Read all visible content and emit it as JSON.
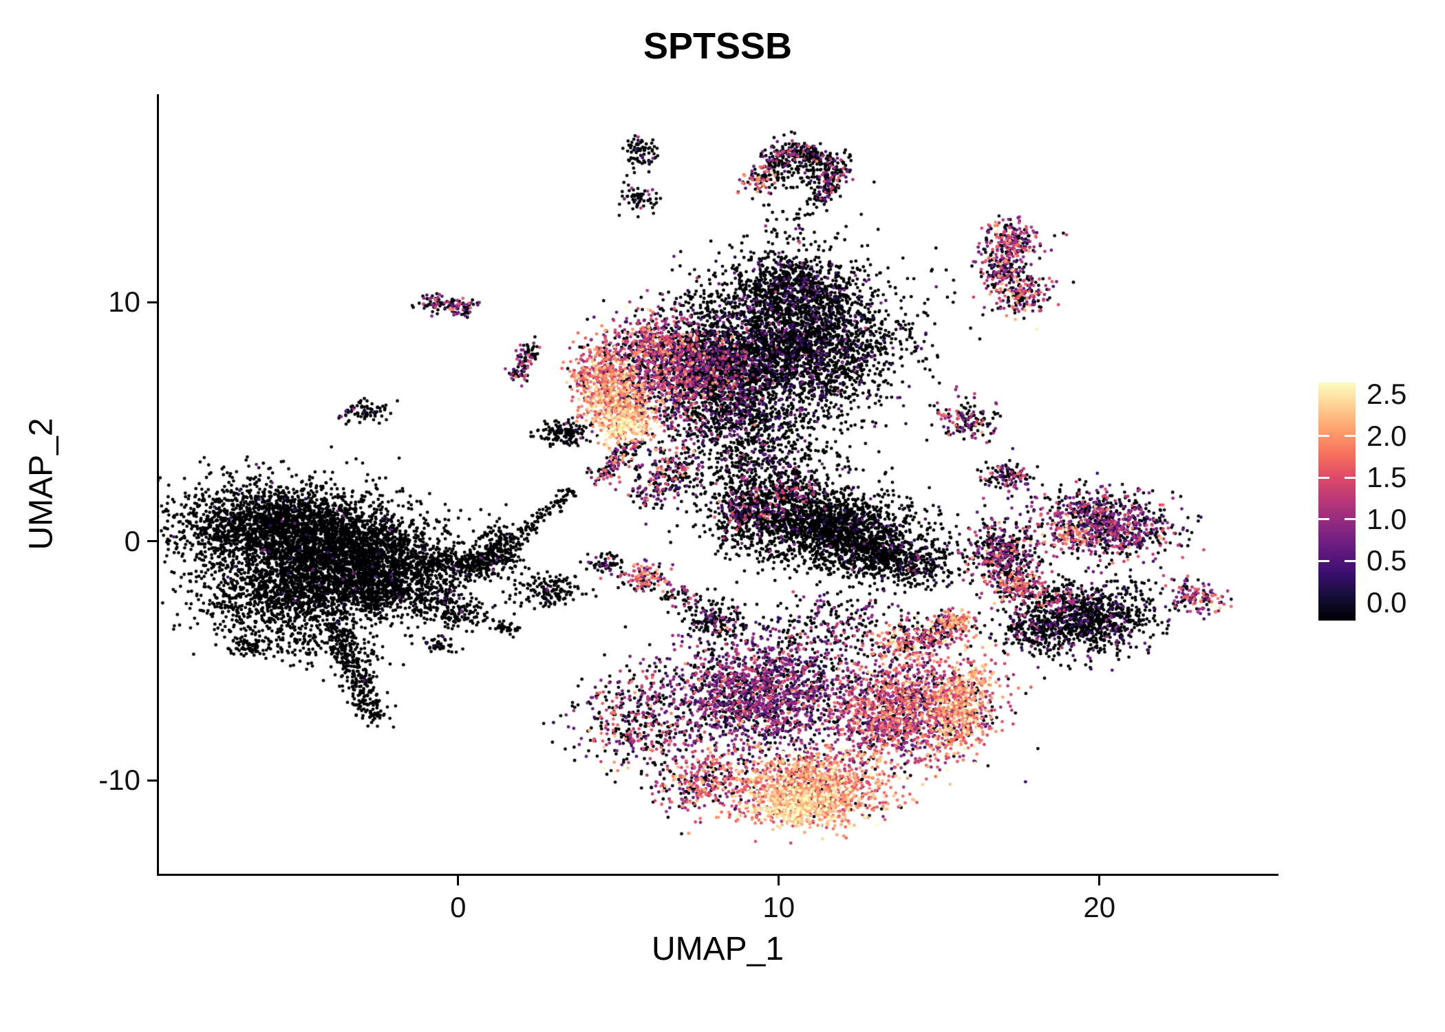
{
  "title": "SPTSSB",
  "axes": {
    "x": {
      "label": "UMAP_1"
    },
    "y": {
      "label": "UMAP_2"
    }
  },
  "legend": {
    "tick_labels": [
      "2.5",
      "2.0",
      "1.5",
      "1.0",
      "0.5",
      "0.0"
    ],
    "tick_marks_at": [
      2.0,
      1.5,
      1.0,
      0.5
    ]
  },
  "chart_data": {
    "type": "scatter",
    "title": "SPTSSB",
    "xlabel": "UMAP_1",
    "ylabel": "UMAP_2",
    "xlim": [
      -9.33,
      25.52
    ],
    "ylim": [
      -13.9,
      18.7
    ],
    "x_ticks": [
      0,
      10,
      20
    ],
    "y_ticks": [
      -10,
      0,
      10
    ],
    "grid": false,
    "point_radius_px": 2.4,
    "seed": 7,
    "color_scale": {
      "name": "magma",
      "domain": [
        0,
        2.5
      ],
      "stops": [
        {
          "t": 0.0,
          "color": "#000004"
        },
        {
          "t": 0.1,
          "color": "#140E36"
        },
        {
          "t": 0.2,
          "color": "#3B0F70"
        },
        {
          "t": 0.3,
          "color": "#641A80"
        },
        {
          "t": 0.4,
          "color": "#8C2981"
        },
        {
          "t": 0.5,
          "color": "#B73779"
        },
        {
          "t": 0.6,
          "color": "#DE4968"
        },
        {
          "t": 0.7,
          "color": "#F7705C"
        },
        {
          "t": 0.8,
          "color": "#FE9F6D"
        },
        {
          "t": 0.9,
          "color": "#FECF92"
        },
        {
          "t": 1.0,
          "color": "#FCFDBF"
        }
      ]
    },
    "clusters": [
      {
        "name": "left-main-upper",
        "x": -5.7,
        "y": 0.6,
        "sx": 1.6,
        "sy": 0.95,
        "rot": 0,
        "n": 2200,
        "z": 0.99,
        "m": 0.45,
        "s": 0.3
      },
      {
        "name": "left-main-mid",
        "x": -3.3,
        "y": -0.5,
        "sx": 1.4,
        "sy": 1.0,
        "rot": 0,
        "n": 1800,
        "z": 0.99,
        "m": 0.45,
        "s": 0.3
      },
      {
        "name": "left-main-lower",
        "x": -5.1,
        "y": -2.2,
        "sx": 1.5,
        "sy": 0.9,
        "rot": 0,
        "n": 1300,
        "z": 0.99,
        "m": 0.45,
        "s": 0.3
      },
      {
        "name": "left-main-right",
        "x": -2.1,
        "y": -1.7,
        "sx": 0.9,
        "sy": 0.8,
        "rot": 0,
        "n": 700,
        "z": 0.985,
        "m": 0.45,
        "s": 0.3
      },
      {
        "name": "left-below-sparse",
        "x": -4.6,
        "y": -4.3,
        "sx": 1.2,
        "sy": 0.55,
        "rot": -15,
        "n": 160,
        "z": 0.99,
        "m": 0.4,
        "s": 0.3
      },
      {
        "name": "left-tiny-sw",
        "x": -6.6,
        "y": -4.4,
        "sx": 0.28,
        "sy": 0.2,
        "rot": 0,
        "n": 55,
        "z": 0.97,
        "m": 0.5,
        "s": 0.3
      },
      {
        "name": "left-hook-a",
        "x": 0.6,
        "y": -0.9,
        "sx": 0.5,
        "sy": 0.35,
        "rot": 20,
        "n": 220,
        "z": 0.97,
        "m": 0.5,
        "s": 0.3
      },
      {
        "name": "left-hook-b",
        "x": 1.3,
        "y": -0.2,
        "sx": 0.35,
        "sy": 0.5,
        "rot": 0,
        "n": 180,
        "z": 0.97,
        "m": 0.5,
        "s": 0.3
      },
      {
        "name": "left-mid-sparse",
        "x": -0.8,
        "y": -2.3,
        "sx": 0.55,
        "sy": 0.4,
        "rot": 0,
        "n": 90,
        "z": 0.98,
        "m": 0.4,
        "s": 0.3
      },
      {
        "name": "topleft-pink-a",
        "x": -0.75,
        "y": 9.95,
        "sx": 0.28,
        "sy": 0.2,
        "rot": 0,
        "n": 55,
        "z": 0.5,
        "m": 1.0,
        "s": 0.5
      },
      {
        "name": "topleft-pink-b",
        "x": 0.0,
        "y": 9.8,
        "sx": 0.3,
        "sy": 0.22,
        "rot": 0,
        "n": 60,
        "z": 0.55,
        "m": 0.9,
        "s": 0.5
      },
      {
        "name": "topleft-black-pair",
        "x": -2.9,
        "y": 5.5,
        "sx": 0.4,
        "sy": 0.22,
        "rot": 10,
        "n": 75,
        "z": 0.93,
        "m": 0.6,
        "s": 0.4
      },
      {
        "name": "top-small-upper",
        "x": 5.7,
        "y": 16.3,
        "sx": 0.25,
        "sy": 0.4,
        "rot": 0,
        "n": 75,
        "z": 0.94,
        "m": 0.5,
        "s": 0.3
      },
      {
        "name": "top-small-lower",
        "x": 5.6,
        "y": 14.3,
        "sx": 0.3,
        "sy": 0.28,
        "rot": 0,
        "n": 60,
        "z": 0.86,
        "m": 0.7,
        "s": 0.4
      },
      {
        "name": "arc-interior",
        "x": 10.7,
        "y": 15.5,
        "sx": 0.7,
        "sy": 0.55,
        "rot": 0,
        "n": 120,
        "z": 0.93,
        "m": 0.5,
        "s": 0.35
      },
      {
        "name": "arc-left-tip-bright",
        "x": 9.3,
        "y": 14.95,
        "sx": 0.22,
        "sy": 0.22,
        "rot": 0,
        "n": 28,
        "z": 0.12,
        "m": 1.6,
        "s": 0.4
      },
      {
        "name": "below-arc-sparse",
        "x": 10.4,
        "y": 13.1,
        "sx": 0.8,
        "sy": 0.7,
        "rot": 0,
        "n": 55,
        "z": 0.91,
        "m": 0.6,
        "s": 0.4
      },
      {
        "name": "crescent-tip-bright",
        "x": 5.2,
        "y": 4.95,
        "sx": 0.4,
        "sy": 0.32,
        "rot": 25,
        "n": 160,
        "z": 0.03,
        "m": 2.25,
        "s": 0.22
      },
      {
        "name": "crescent-core",
        "x": 4.95,
        "y": 5.7,
        "sx": 0.55,
        "sy": 0.8,
        "rot": 15,
        "n": 430,
        "z": 0.05,
        "m": 1.95,
        "s": 0.35
      },
      {
        "name": "crescent-upper",
        "x": 4.5,
        "y": 7.0,
        "sx": 0.5,
        "sy": 0.75,
        "rot": 0,
        "n": 380,
        "z": 0.07,
        "m": 1.55,
        "s": 0.4
      },
      {
        "name": "topcenter-transition",
        "x": 6.6,
        "y": 7.0,
        "sx": 1.05,
        "sy": 1.15,
        "rot": 0,
        "n": 1000,
        "z": 0.32,
        "m": 1.1,
        "s": 0.5
      },
      {
        "name": "topcenter-upper-pink",
        "x": 6.1,
        "y": 8.4,
        "sx": 0.6,
        "sy": 0.5,
        "rot": 0,
        "n": 250,
        "z": 0.28,
        "m": 1.3,
        "s": 0.45
      },
      {
        "name": "topcenter-dark-main",
        "x": 10.4,
        "y": 8.3,
        "sx": 1.7,
        "sy": 1.5,
        "rot": 0,
        "n": 3200,
        "z": 0.87,
        "m": 0.45,
        "s": 0.3
      },
      {
        "name": "topcenter-dark-top",
        "x": 10.2,
        "y": 10.8,
        "sx": 0.95,
        "sy": 0.6,
        "rot": 0,
        "n": 500,
        "z": 0.86,
        "m": 0.5,
        "s": 0.3
      },
      {
        "name": "topcenter-mix-left",
        "x": 8.2,
        "y": 7.1,
        "sx": 0.9,
        "sy": 1.0,
        "rot": 0,
        "n": 800,
        "z": 0.68,
        "m": 0.7,
        "s": 0.4
      },
      {
        "name": "topcenter-bottom-edge",
        "x": 8.8,
        "y": 5.1,
        "sx": 1.1,
        "sy": 0.6,
        "rot": 0,
        "n": 420,
        "z": 0.82,
        "m": 0.6,
        "s": 0.35
      },
      {
        "name": "topcenter-below-sparse",
        "x": 8.6,
        "y": 3.3,
        "sx": 1.2,
        "sy": 0.8,
        "rot": 0,
        "n": 260,
        "z": 0.85,
        "m": 0.6,
        "s": 0.4
      },
      {
        "name": "mid-black-blob",
        "x": 3.3,
        "y": 4.5,
        "sx": 0.38,
        "sy": 0.3,
        "rot": 0,
        "n": 130,
        "z": 0.94,
        "m": 0.5,
        "s": 0.3
      },
      {
        "name": "mid-pink-cluster",
        "x": 6.5,
        "y": 2.9,
        "sx": 0.45,
        "sy": 0.55,
        "rot": 0,
        "n": 150,
        "z": 0.48,
        "m": 1.1,
        "s": 0.5
      },
      {
        "name": "mid-few-dots",
        "x": 5.9,
        "y": 1.9,
        "sx": 0.3,
        "sy": 0.25,
        "rot": 0,
        "n": 45,
        "z": 0.6,
        "m": 0.9,
        "s": 0.4
      },
      {
        "name": "central-dark-wing",
        "x": 11.2,
        "y": 0.7,
        "sx": 1.6,
        "sy": 0.85,
        "rot": -12,
        "n": 2000,
        "z": 0.94,
        "m": 0.45,
        "s": 0.3
      },
      {
        "name": "central-wing-right",
        "x": 13.2,
        "y": -0.6,
        "sx": 0.9,
        "sy": 0.5,
        "rot": -20,
        "n": 500,
        "z": 0.94,
        "m": 0.45,
        "s": 0.3
      },
      {
        "name": "central-left-colored",
        "x": 8.9,
        "y": 1.4,
        "sx": 0.5,
        "sy": 0.6,
        "rot": 0,
        "n": 220,
        "z": 0.55,
        "m": 0.9,
        "s": 0.45
      },
      {
        "name": "central-top-pink",
        "x": 10.2,
        "y": 2.1,
        "sx": 0.6,
        "sy": 0.25,
        "rot": 0,
        "n": 90,
        "z": 0.5,
        "m": 1.2,
        "s": 0.4
      },
      {
        "name": "central-above-sparse",
        "x": 10.0,
        "y": 3.3,
        "sx": 1.0,
        "sy": 0.6,
        "rot": 0,
        "n": 150,
        "z": 0.88,
        "m": 0.6,
        "s": 0.35
      },
      {
        "name": "central-right-sparse",
        "x": 14.8,
        "y": -0.9,
        "sx": 0.7,
        "sy": 0.5,
        "rot": 0,
        "n": 110,
        "z": 0.9,
        "m": 0.5,
        "s": 0.35
      },
      {
        "name": "belowmid-tiny",
        "x": 4.6,
        "y": -0.9,
        "sx": 0.3,
        "sy": 0.25,
        "rot": 0,
        "n": 60,
        "z": 0.8,
        "m": 0.8,
        "s": 0.4
      },
      {
        "name": "belowmid-orange",
        "x": 5.8,
        "y": -1.5,
        "sx": 0.35,
        "sy": 0.35,
        "rot": 0,
        "n": 110,
        "z": 0.35,
        "m": 1.4,
        "s": 0.45
      },
      {
        "name": "belowmid-tiny-2",
        "x": 6.9,
        "y": -2.3,
        "sx": 0.3,
        "sy": 0.25,
        "rot": 0,
        "n": 50,
        "z": 0.6,
        "m": 1.0,
        "s": 0.4
      },
      {
        "name": "small-dark-purple",
        "x": 8.0,
        "y": -3.3,
        "sx": 0.5,
        "sy": 0.4,
        "rot": 0,
        "n": 160,
        "z": 0.78,
        "m": 0.7,
        "s": 0.4
      },
      {
        "name": "small-black-1",
        "x": 2.8,
        "y": -2.0,
        "sx": 0.55,
        "sy": 0.4,
        "rot": 0,
        "n": 150,
        "z": 0.94,
        "m": 0.5,
        "s": 0.3
      },
      {
        "name": "small-black-2",
        "x": 0.1,
        "y": -3.1,
        "sx": 0.5,
        "sy": 0.3,
        "rot": 0,
        "n": 110,
        "z": 0.96,
        "m": 0.4,
        "s": 0.3
      },
      {
        "name": "small-black-3",
        "x": -0.6,
        "y": -4.3,
        "sx": 0.3,
        "sy": 0.22,
        "rot": 0,
        "n": 45,
        "z": 0.96,
        "m": 0.4,
        "s": 0.3
      },
      {
        "name": "small-black-4",
        "x": 1.5,
        "y": -3.6,
        "sx": 0.25,
        "sy": 0.2,
        "rot": 0,
        "n": 35,
        "z": 0.92,
        "m": 0.5,
        "s": 0.3
      },
      {
        "name": "bottom-left-sparse",
        "x": 5.6,
        "y": -7.5,
        "sx": 1.0,
        "sy": 1.1,
        "rot": 0,
        "n": 380,
        "z": 0.45,
        "m": 1.2,
        "s": 0.5
      },
      {
        "name": "bottom-main-purple",
        "x": 9.4,
        "y": -6.4,
        "sx": 1.5,
        "sy": 1.2,
        "rot": 0,
        "n": 1700,
        "z": 0.3,
        "m": 0.85,
        "s": 0.4
      },
      {
        "name": "bottom-bright",
        "x": 10.9,
        "y": -10.3,
        "sx": 1.3,
        "sy": 0.75,
        "rot": 0,
        "n": 1200,
        "z": 0.07,
        "m": 1.8,
        "s": 0.4
      },
      {
        "name": "bottom-brightest",
        "x": 10.6,
        "y": -11.1,
        "sx": 0.7,
        "sy": 0.4,
        "rot": 0,
        "n": 350,
        "z": 0.04,
        "m": 2.2,
        "s": 0.25
      },
      {
        "name": "bottom-right-lobe",
        "x": 13.9,
        "y": -7.0,
        "sx": 1.3,
        "sy": 1.1,
        "rot": 10,
        "n": 1500,
        "z": 0.18,
        "m": 1.3,
        "s": 0.45
      },
      {
        "name": "bottom-right-crescent",
        "x": 15.7,
        "y": -6.9,
        "sx": 0.45,
        "sy": 1.0,
        "rot": -8,
        "n": 420,
        "z": 0.05,
        "m": 1.9,
        "s": 0.35
      },
      {
        "name": "bottom-arm-bright-spot",
        "x": 15.5,
        "y": -3.4,
        "sx": 0.25,
        "sy": 0.2,
        "rot": 0,
        "n": 60,
        "z": 0.05,
        "m": 1.9,
        "s": 0.3
      },
      {
        "name": "bottom-top-scatter",
        "x": 11.5,
        "y": -3.6,
        "sx": 1.3,
        "sy": 0.8,
        "rot": 0,
        "n": 280,
        "z": 0.6,
        "m": 0.8,
        "s": 0.4
      },
      {
        "name": "bottom-left-tip",
        "x": 7.5,
        "y": -10.0,
        "sx": 0.8,
        "sy": 0.7,
        "rot": 20,
        "n": 300,
        "z": 0.3,
        "m": 1.35,
        "s": 0.45
      },
      {
        "name": "right-mid-mixed",
        "x": 17.0,
        "y": -0.5,
        "sx": 0.6,
        "sy": 0.65,
        "rot": 0,
        "n": 380,
        "z": 0.5,
        "m": 0.9,
        "s": 0.45
      },
      {
        "name": "right-mid-bright",
        "x": 17.4,
        "y": -1.8,
        "sx": 0.45,
        "sy": 0.4,
        "rot": 0,
        "n": 200,
        "z": 0.28,
        "m": 1.3,
        "s": 0.5
      },
      {
        "name": "right-dark",
        "x": 19.7,
        "y": -3.2,
        "sx": 1.1,
        "sy": 0.7,
        "rot": 15,
        "n": 900,
        "z": 0.85,
        "m": 0.5,
        "s": 0.3
      },
      {
        "name": "right-dark-left",
        "x": 18.0,
        "y": -3.6,
        "sx": 0.5,
        "sy": 0.4,
        "rot": 0,
        "n": 180,
        "z": 0.7,
        "m": 0.7,
        "s": 0.4
      },
      {
        "name": "right-dark-top-colored",
        "x": 18.6,
        "y": -2.3,
        "sx": 0.5,
        "sy": 0.3,
        "rot": 0,
        "n": 90,
        "z": 0.45,
        "m": 1.1,
        "s": 0.4
      },
      {
        "name": "right-upper-purple",
        "x": 20.2,
        "y": 0.7,
        "sx": 1.05,
        "sy": 0.7,
        "rot": -10,
        "n": 850,
        "z": 0.4,
        "m": 0.9,
        "s": 0.45
      },
      {
        "name": "right-upper-orange-spot",
        "x": 19.1,
        "y": 0.3,
        "sx": 0.3,
        "sy": 0.25,
        "rot": 0,
        "n": 60,
        "z": 0.1,
        "m": 1.7,
        "s": 0.4
      },
      {
        "name": "right-small-upper",
        "x": 15.9,
        "y": 5.1,
        "sx": 0.5,
        "sy": 0.45,
        "rot": 0,
        "n": 140,
        "z": 0.45,
        "m": 1.0,
        "s": 0.45
      },
      {
        "name": "right-small-mid",
        "x": 17.2,
        "y": 2.7,
        "sx": 0.4,
        "sy": 0.35,
        "rot": 0,
        "n": 110,
        "z": 0.5,
        "m": 1.0,
        "s": 0.45
      },
      {
        "name": "topright-streak-top",
        "x": 17.3,
        "y": 12.6,
        "sx": 0.45,
        "sy": 0.45,
        "rot": 0,
        "n": 200,
        "z": 0.3,
        "m": 1.2,
        "s": 0.5
      },
      {
        "name": "topright-streak-mid",
        "x": 17.0,
        "y": 11.5,
        "sx": 0.35,
        "sy": 0.5,
        "rot": 0,
        "n": 160,
        "z": 0.35,
        "m": 1.1,
        "s": 0.5
      },
      {
        "name": "topright-streak-bottom",
        "x": 17.6,
        "y": 10.3,
        "sx": 0.5,
        "sy": 0.45,
        "rot": 0,
        "n": 170,
        "z": 0.35,
        "m": 1.1,
        "s": 0.5
      },
      {
        "name": "far-right-small",
        "x": 23.1,
        "y": -2.3,
        "sx": 0.45,
        "sy": 0.3,
        "rot": -25,
        "n": 120,
        "z": 0.3,
        "m": 1.2,
        "s": 0.5
      }
    ],
    "segments": [
      {
        "name": "left-tail",
        "x1": -3.8,
        "y1": -3.6,
        "x2": -2.6,
        "y2": -7.4,
        "w": 0.28,
        "n": 320,
        "z": 0.99,
        "m": 0.4,
        "s": 0.3
      },
      {
        "name": "left-hook-bridge",
        "x1": -1.2,
        "y1": -0.7,
        "x2": 0.2,
        "y2": -0.9,
        "w": 0.2,
        "n": 100,
        "z": 0.98,
        "m": 0.4,
        "s": 0.3
      },
      {
        "name": "topleft-streak",
        "x1": 1.9,
        "y1": 6.9,
        "x2": 2.3,
        "y2": 8.2,
        "w": 0.16,
        "n": 90,
        "z": 0.55,
        "m": 1.0,
        "s": 0.5
      },
      {
        "name": "arc-left",
        "x1": 9.3,
        "y1": 15.0,
        "x2": 10.4,
        "y2": 16.5,
        "w": 0.25,
        "n": 150,
        "z": 0.55,
        "m": 1.1,
        "s": 0.5
      },
      {
        "name": "arc-top",
        "x1": 10.4,
        "y1": 16.5,
        "x2": 11.9,
        "y2": 15.7,
        "w": 0.25,
        "n": 140,
        "z": 0.7,
        "m": 0.9,
        "s": 0.45
      },
      {
        "name": "arc-right",
        "x1": 11.8,
        "y1": 15.5,
        "x2": 11.3,
        "y2": 14.2,
        "w": 0.22,
        "n": 110,
        "z": 0.6,
        "m": 1.0,
        "s": 0.45
      },
      {
        "name": "mid-diag-streak",
        "x1": 4.4,
        "y1": 2.6,
        "x2": 5.5,
        "y2": 4.1,
        "w": 0.2,
        "n": 130,
        "z": 0.5,
        "m": 1.2,
        "s": 0.5
      },
      {
        "name": "left-thin-streak",
        "x1": 2.0,
        "y1": 0.2,
        "x2": 3.5,
        "y2": 2.2,
        "w": 0.13,
        "n": 85,
        "z": 0.97,
        "m": 0.5,
        "s": 0.3
      },
      {
        "name": "bottom-arm",
        "x1": 13.2,
        "y1": -4.6,
        "x2": 15.8,
        "y2": -3.3,
        "w": 0.35,
        "n": 320,
        "z": 0.25,
        "m": 1.5,
        "s": 0.45
      }
    ]
  }
}
